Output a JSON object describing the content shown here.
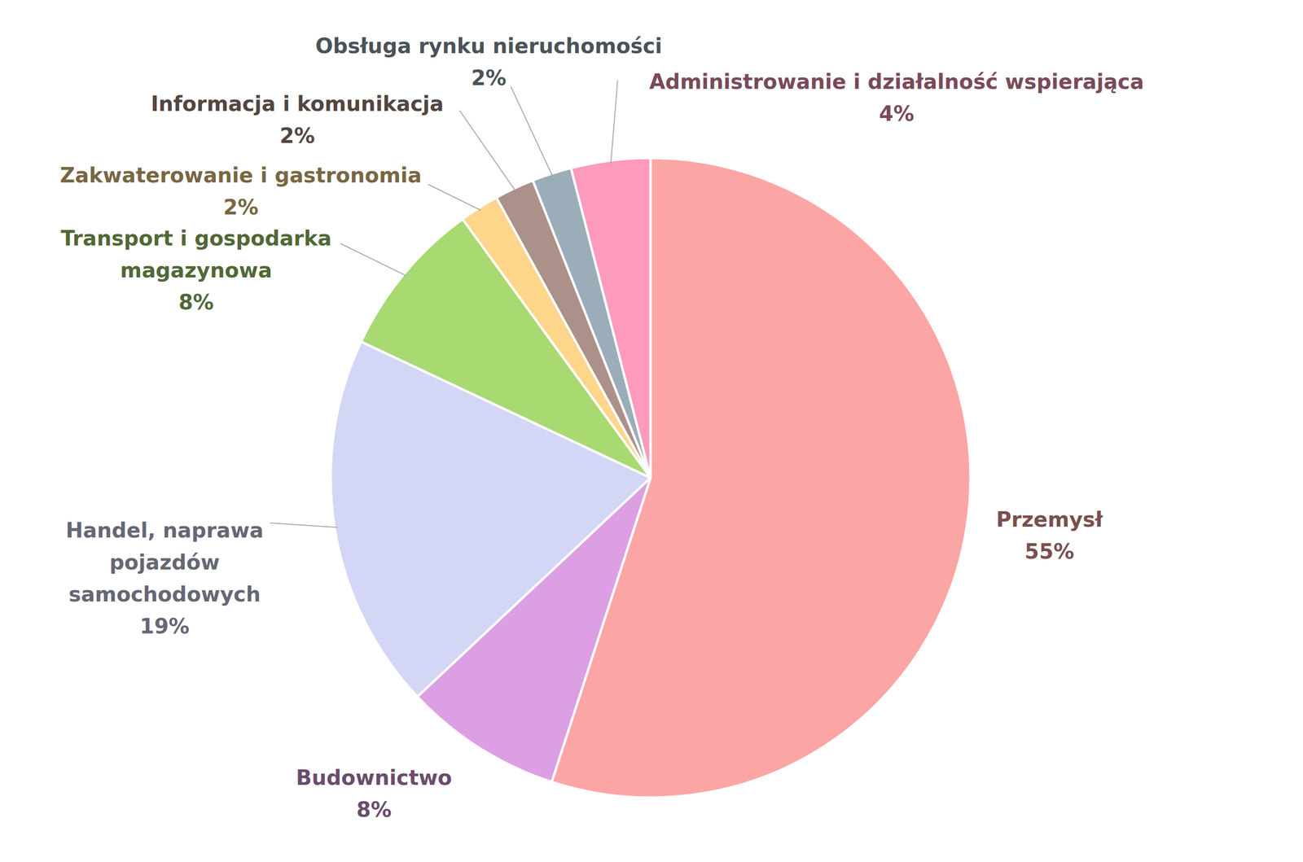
{
  "chart_data": {
    "type": "pie",
    "categories": [
      "Przemysł",
      "Budownictwo",
      "Handel, naprawa pojazdów samochodowych",
      "Transport i gospodarka magazynowa",
      "Zakwaterowanie i gastronomia",
      "Informacja i komunikacja",
      "Obsługa rynku nieruchomości",
      "Administrowanie i działalność wspierająca"
    ],
    "values": [
      55,
      8,
      19,
      8,
      2,
      2,
      2,
      4
    ],
    "value_labels": [
      "55%",
      "8%",
      "19%",
      "8%",
      "2%",
      "2%",
      "2%",
      "4%"
    ],
    "colors": [
      "#fca5a5",
      "#dc9fe3",
      "#d4d6f6",
      "#a9d971",
      "#fdd68b",
      "#ab9189",
      "#9badb8",
      "#fe9abb"
    ],
    "data_labels": true
  }
}
